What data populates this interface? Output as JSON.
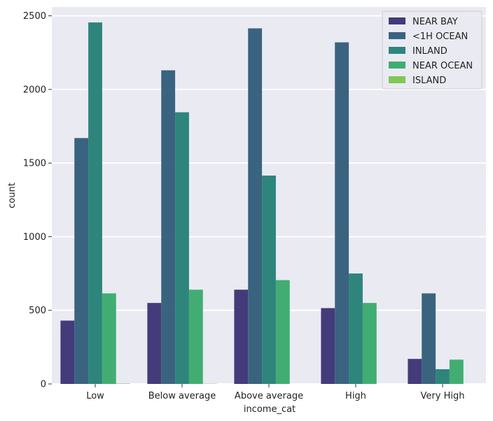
{
  "chart_data": {
    "type": "bar",
    "title": "",
    "xlabel": "income_cat",
    "ylabel": "count",
    "ylim": [
      0,
      2560
    ],
    "yticks": [
      0,
      500,
      1000,
      1500,
      2000,
      2500
    ],
    "categories": [
      "Low",
      "Below average",
      "Above average",
      "High",
      "Very High"
    ],
    "series": [
      {
        "name": "NEAR BAY",
        "color": "#433b7a",
        "values": [
          430,
          550,
          640,
          515,
          170
        ]
      },
      {
        "name": "<1H OCEAN",
        "color": "#3a637f",
        "values": [
          1670,
          2130,
          2415,
          2320,
          615
        ]
      },
      {
        "name": "INLAND",
        "color": "#2e857c",
        "values": [
          2455,
          1845,
          1415,
          750,
          100
        ]
      },
      {
        "name": "NEAR OCEAN",
        "color": "#42ad72",
        "values": [
          615,
          640,
          705,
          550,
          165
        ]
      },
      {
        "name": "ISLAND",
        "color": "#80c755",
        "values": [
          3,
          2,
          0,
          0,
          0
        ]
      }
    ],
    "grid": true,
    "legend_position": "top-right",
    "background": "#eaeaf2"
  }
}
